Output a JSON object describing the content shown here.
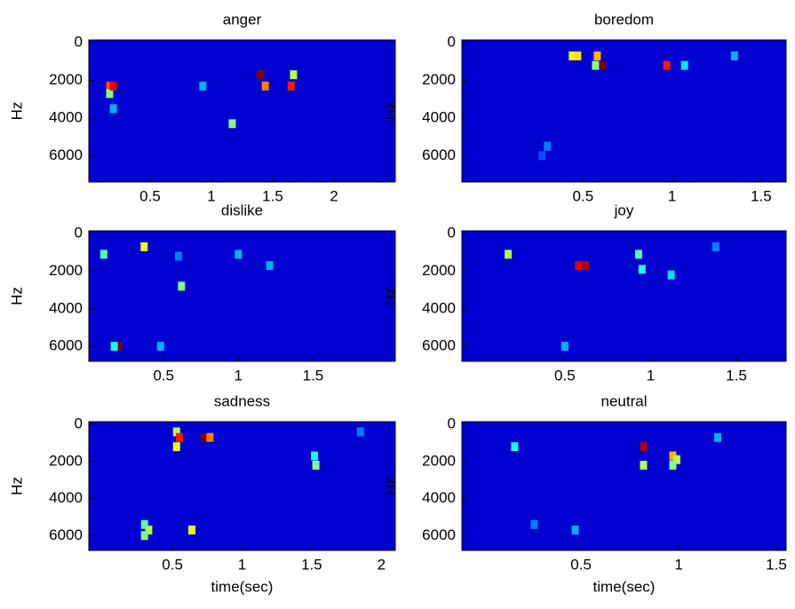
{
  "chart_data": [
    {
      "type": "heatmap",
      "title": "anger",
      "ylabel": "Hz",
      "xlim": [
        0,
        2.5
      ],
      "ylim": [
        7400,
        -150
      ],
      "xticks": [
        0.5,
        1,
        1.5,
        2
      ],
      "yticks": [
        0,
        2000,
        4000,
        6000
      ],
      "spots": [
        {
          "t": 0.17,
          "hz": 2300,
          "v": 0.8
        },
        {
          "t": 0.17,
          "hz": 2700,
          "v": 0.5
        },
        {
          "t": 0.2,
          "hz": 2300,
          "v": 0.9
        },
        {
          "t": 1.4,
          "hz": 1700,
          "v": 1.0
        },
        {
          "t": 1.44,
          "hz": 2300,
          "v": 0.75
        },
        {
          "t": 1.67,
          "hz": 1700,
          "v": 0.55
        },
        {
          "t": 1.65,
          "hz": 2300,
          "v": 0.85
        },
        {
          "t": 1.17,
          "hz": 4300,
          "v": 0.5
        },
        {
          "t": 0.93,
          "hz": 2300,
          "v": 0.3
        },
        {
          "t": 0.2,
          "hz": 3500,
          "v": 0.3
        }
      ]
    },
    {
      "type": "heatmap",
      "title": "boredom",
      "ylabel": "Hz",
      "xlim": [
        -0.18,
        1.64
      ],
      "ylim": [
        7400,
        -150
      ],
      "xticks": [
        0.5,
        1,
        1.5
      ],
      "yticks": [
        0,
        2000,
        4000,
        6000
      ],
      "spots": [
        {
          "t": 0.44,
          "hz": 700,
          "v": 0.6
        },
        {
          "t": 0.47,
          "hz": 700,
          "v": 0.65
        },
        {
          "t": 0.58,
          "hz": 700,
          "v": 0.7
        },
        {
          "t": 0.61,
          "hz": 1200,
          "v": 1.0
        },
        {
          "t": 0.57,
          "hz": 1200,
          "v": 0.5
        },
        {
          "t": 0.97,
          "hz": 1200,
          "v": 0.85
        },
        {
          "t": 1.07,
          "hz": 1200,
          "v": 0.35
        },
        {
          "t": 1.35,
          "hz": 700,
          "v": 0.3
        },
        {
          "t": 0.3,
          "hz": 5500,
          "v": 0.25
        },
        {
          "t": 0.27,
          "hz": 6000,
          "v": 0.2
        }
      ]
    },
    {
      "type": "heatmap",
      "title": "dislike",
      "ylabel": "Hz",
      "xlim": [
        0,
        2.05
      ],
      "ylim": [
        6800,
        -150
      ],
      "xticks": [
        0.5,
        1,
        1.5
      ],
      "yticks": [
        0,
        2000,
        4000,
        6000
      ],
      "spots": [
        {
          "t": 0.1,
          "hz": 1100,
          "v": 0.45
        },
        {
          "t": 0.37,
          "hz": 700,
          "v": 0.6
        },
        {
          "t": 0.2,
          "hz": 6000,
          "v": 1.0
        },
        {
          "t": 0.17,
          "hz": 6000,
          "v": 0.4
        },
        {
          "t": 0.62,
          "hz": 2800,
          "v": 0.5
        },
        {
          "t": 0.48,
          "hz": 6000,
          "v": 0.3
        },
        {
          "t": 1.0,
          "hz": 1100,
          "v": 0.3
        },
        {
          "t": 1.21,
          "hz": 1700,
          "v": 0.3
        },
        {
          "t": 0.6,
          "hz": 1200,
          "v": 0.25
        }
      ]
    },
    {
      "type": "heatmap",
      "title": "joy",
      "ylabel": "Hz",
      "xlim": [
        -0.1,
        1.79
      ],
      "ylim": [
        6800,
        -150
      ],
      "xticks": [
        0.5,
        1,
        1.5
      ],
      "yticks": [
        0,
        2000,
        4000,
        6000
      ],
      "spots": [
        {
          "t": 0.17,
          "hz": 1100,
          "v": 0.55
        },
        {
          "t": 0.58,
          "hz": 1700,
          "v": 0.9
        },
        {
          "t": 0.62,
          "hz": 1700,
          "v": 0.95
        },
        {
          "t": 0.93,
          "hz": 1100,
          "v": 0.45
        },
        {
          "t": 0.95,
          "hz": 1900,
          "v": 0.4
        },
        {
          "t": 1.12,
          "hz": 2200,
          "v": 0.35
        },
        {
          "t": 0.5,
          "hz": 6000,
          "v": 0.3
        },
        {
          "t": 1.38,
          "hz": 700,
          "v": 0.25
        }
      ]
    },
    {
      "type": "heatmap",
      "title": "sadness",
      "xlabel": "time(sec)",
      "ylabel": "Hz",
      "xlim": [
        -0.1,
        2.1
      ],
      "ylim": [
        6800,
        -150
      ],
      "xticks": [
        0.5,
        1,
        1.5,
        2
      ],
      "yticks": [
        0,
        2000,
        4000,
        6000
      ],
      "spots": [
        {
          "t": 0.53,
          "hz": 400,
          "v": 0.55
        },
        {
          "t": 0.55,
          "hz": 700,
          "v": 0.85
        },
        {
          "t": 0.53,
          "hz": 1200,
          "v": 0.6
        },
        {
          "t": 0.73,
          "hz": 700,
          "v": 1.0
        },
        {
          "t": 0.77,
          "hz": 700,
          "v": 0.75
        },
        {
          "t": 1.52,
          "hz": 1700,
          "v": 0.4
        },
        {
          "t": 1.53,
          "hz": 2200,
          "v": 0.5
        },
        {
          "t": 0.3,
          "hz": 5400,
          "v": 0.45
        },
        {
          "t": 0.33,
          "hz": 5700,
          "v": 0.55
        },
        {
          "t": 0.3,
          "hz": 6000,
          "v": 0.5
        },
        {
          "t": 0.64,
          "hz": 5700,
          "v": 0.6
        },
        {
          "t": 1.85,
          "hz": 400,
          "v": 0.25
        }
      ]
    },
    {
      "type": "heatmap",
      "title": "neutral",
      "xlabel": "time(sec)",
      "ylabel": "Hz",
      "xlim": [
        -0.11,
        1.55
      ],
      "ylim": [
        6800,
        -150
      ],
      "xticks": [
        0.5,
        1,
        1.5
      ],
      "yticks": [
        0,
        2000,
        4000,
        6000
      ],
      "spots": [
        {
          "t": 0.16,
          "hz": 1200,
          "v": 0.4
        },
        {
          "t": 0.82,
          "hz": 1200,
          "v": 0.95
        },
        {
          "t": 0.82,
          "hz": 2200,
          "v": 0.55
        },
        {
          "t": 0.97,
          "hz": 1700,
          "v": 0.7
        },
        {
          "t": 0.99,
          "hz": 1900,
          "v": 0.55
        },
        {
          "t": 0.97,
          "hz": 2200,
          "v": 0.5
        },
        {
          "t": 0.26,
          "hz": 5400,
          "v": 0.25
        },
        {
          "t": 0.47,
          "hz": 5700,
          "v": 0.3
        },
        {
          "t": 1.2,
          "hz": 700,
          "v": 0.3
        }
      ]
    }
  ]
}
